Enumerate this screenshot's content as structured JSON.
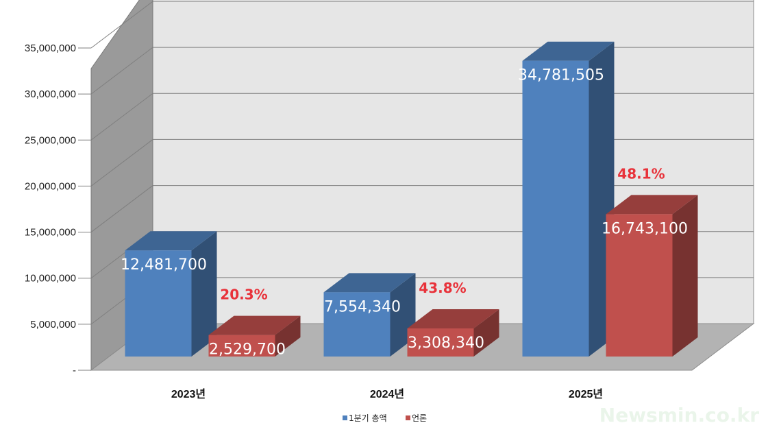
{
  "chart_data": {
    "type": "bar",
    "categories": [
      "2023년",
      "2024년",
      "2025년"
    ],
    "series": [
      {
        "name": "1분기 총액",
        "color": "#4f81bd",
        "values": [
          12481700,
          7554340,
          34781505
        ],
        "labels": [
          "12,481,700",
          "7,554,340",
          "34,781,505"
        ]
      },
      {
        "name": "언론",
        "color": "#c0504d",
        "values": [
          2529700,
          3308340,
          16743100
        ],
        "labels": [
          "2,529,700",
          "3,308,340",
          "16,743,100"
        ],
        "percent_labels": [
          "20.3%",
          "43.8%",
          "48.1%"
        ]
      }
    ],
    "y_ticks": [
      "-",
      "5,000,000",
      "10,000,000",
      "15,000,000",
      "20,000,000",
      "25,000,000",
      "30,000,000",
      "35,000,000"
    ],
    "ylim": [
      0,
      35000000
    ],
    "grid": true,
    "legend_position": "bottom",
    "percent_color": "#e8323a"
  },
  "watermark": "Newsmin.co.kr"
}
